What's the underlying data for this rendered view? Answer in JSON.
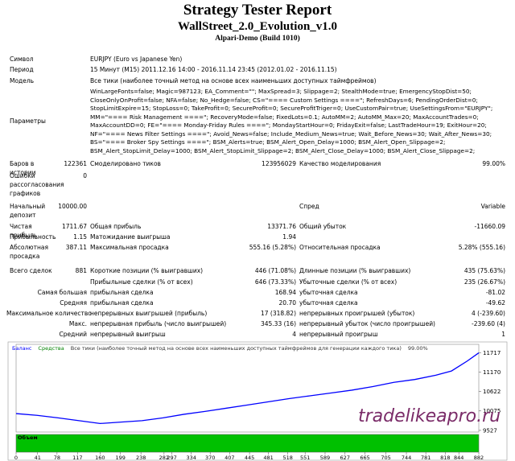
{
  "header": {
    "title": "Strategy Tester Report",
    "expert": "WallStreet_2.0_Evolution_v1.0",
    "server": "Alpari-Demo (Build 1010)"
  },
  "info": [
    {
      "label": "Символ",
      "value": "EURJPY (Euro vs Japanese Yen)"
    },
    {
      "label": "Период",
      "value": "15 Минут (M15) 2011.12.16 14:00 - 2016.11.14 23:45 (2012.01.02 - 2016.11.15)"
    },
    {
      "label": "Модель",
      "value": "Все тики (наиболее точный метод на основе всех наименьших доступных таймфреймов)"
    },
    {
      "label": "Параметры",
      "value": "WinLargeFonts=false; Magic=987123; EA_Comment=\"\"; MaxSpread=3; Slippage=2; StealthMode=true; EmergencyStopDist=50; CloseOnlyOnProfit=false; NFA=false; No_Hedge=false; CS=\"==== Custom Settings ====\"; RefreshDays=6; PendingOrderDist=0; StopLimitExpire=15; StopLoss=0; TakeProfit=0; SecureProfit=0; SecureProfitTriger=0; UseCustomPair=true; UseSettingsFrom=\"EURJPY\"; MM=\"==== Risk Management ====\"; RecoveryMode=false; FixedLots=0.1; AutoMM=2; AutoMM_Max=20; MaxAccountTrades=0; MaxAccountDD=0; FE=\"==== Monday-Friday Rules ====\"; MondayStartHour=0; FridayExit=false; LastTradeHour=19; ExitHour=20; NF=\"==== News Filter Settings ====\"; Avoid_News=false; Include_Medium_News=true; Wait_Before_News=30; Wait_After_News=30; BS=\"==== Broker Spy Settings ====\"; BSM_Alerts=true; BSM_Alert_Open_Delay=1000; BSM_Alert_Open_Slippage=2; BSM_Alert_StopLimit_Delay=1000; BSM_Alert_StopLimit_Slippage=2; BSM_Alert_Close_Delay=1000; BSM_Alert_Close_Slippage=2;"
    }
  ],
  "stats": [
    {
      "label": "Баров в истории",
      "value": "122361",
      "pairs": [
        {
          "label": "Смоделировано тиков",
          "value": "123956029"
        },
        {
          "label": "Качество моделирования",
          "value": "99.00%"
        }
      ]
    },
    {
      "label": "Ошибки рассогласования графиков",
      "value": "0"
    },
    {
      "label": "Начальный депозит",
      "value": "10000.00",
      "pairs": [
        {
          "label": "",
          "value": ""
        },
        {
          "label": "Спред",
          "value": "Variable"
        }
      ]
    },
    {
      "label": "Чистая прибыль",
      "value": "1711.67",
      "pairs": [
        {
          "label": "Общая прибыль",
          "value": "13371.76"
        },
        {
          "label": "Общий убыток",
          "value": "-11660.09"
        }
      ]
    },
    {
      "label": "Прибыльность",
      "value": "1.15",
      "pairs": [
        {
          "label": "Матожидание выигрыша",
          "value": "1.94"
        }
      ]
    },
    {
      "label": "Абсолютная просадка",
      "value": "387.11",
      "pairs": [
        {
          "label": "Максимальная просадка",
          "value": "555.16 (5.28%)"
        },
        {
          "label": "Относительная просадка",
          "value": "5.28% (555.16)"
        }
      ]
    },
    {
      "label": "Всего сделок",
      "value": "881",
      "pairs": [
        {
          "label": "Короткие позиции (% выигравших)",
          "value": "446 (71.08%)"
        },
        {
          "label": "Длинные позиции (% выигравших)",
          "value": "435 (75.63%)"
        }
      ]
    },
    {
      "pairs": [
        {
          "label": "Прибыльные сделки (% от всех)",
          "value": "646 (73.33%)"
        },
        {
          "label": "Убыточные сделки (% от всех)",
          "value": "235 (26.67%)"
        }
      ]
    },
    {
      "label": "Самая большая",
      "pairs": [
        {
          "label": "прибыльная сделка",
          "value": "168.94"
        },
        {
          "label": "убыточная сделка",
          "value": "-81.02"
        }
      ]
    },
    {
      "label": "Средняя",
      "pairs": [
        {
          "label": "прибыльная сделка",
          "value": "20.70"
        },
        {
          "label": "убыточная сделка",
          "value": "-49.62"
        }
      ]
    },
    {
      "label": "Максимальное количество",
      "pairs": [
        {
          "label": "непрерывных выигрышей (прибыль)",
          "value": "17 (318.82)"
        },
        {
          "label": "непрерывных проигрышей (убыток)",
          "value": "4 (-239.60)"
        }
      ]
    },
    {
      "label": "Макс.",
      "pairs": [
        {
          "label": "непрерывная прибыль (число выигрышей)",
          "value": "345.33 (16)"
        },
        {
          "label": "непрерывный убыток (число проигрышей)",
          "value": "-239.60 (4)"
        }
      ]
    },
    {
      "label": "Средний",
      "pairs": [
        {
          "label": "непрерывный выигрыш",
          "value": "4"
        },
        {
          "label": "непрерывный проигрыш",
          "value": "1"
        }
      ]
    }
  ],
  "chart_data": {
    "type": "line",
    "equity_label": "Средства",
    "model_note": "Все тики (наиболее точный метод на основе всех наименьших доступных таймфреймов для генерации каждого тика)",
    "quality": "99.00%",
    "volume_label": "Объем",
    "watermark": "tradelikeapro.ru",
    "x": [
      0,
      40,
      80,
      120,
      160,
      200,
      240,
      280,
      320,
      360,
      400,
      440,
      480,
      520,
      560,
      600,
      640,
      680,
      720,
      760,
      800,
      830,
      860,
      882
    ],
    "series": [
      {
        "name": "Баланс",
        "color": "#0000ff",
        "values": [
          10000,
          9950,
          9880,
          9800,
          9720,
          9760,
          9800,
          9880,
          9980,
          10060,
          10150,
          10240,
          10330,
          10420,
          10500,
          10580,
          10660,
          10760,
          10880,
          10960,
          11080,
          11200,
          11480,
          11711
        ]
      }
    ],
    "equity_color": "#008000",
    "volume_color": "#00c000",
    "xlim": [
      0,
      882
    ],
    "xticks": [
      0,
      41,
      78,
      117,
      160,
      199,
      238,
      282,
      297,
      334,
      370,
      407,
      445,
      481,
      518,
      551,
      589,
      627,
      665,
      705,
      744,
      781,
      818,
      844,
      882
    ],
    "ylim": [
      9480,
      11950
    ],
    "yticks": [
      9527,
      10075,
      10622,
      11170,
      11717
    ]
  }
}
